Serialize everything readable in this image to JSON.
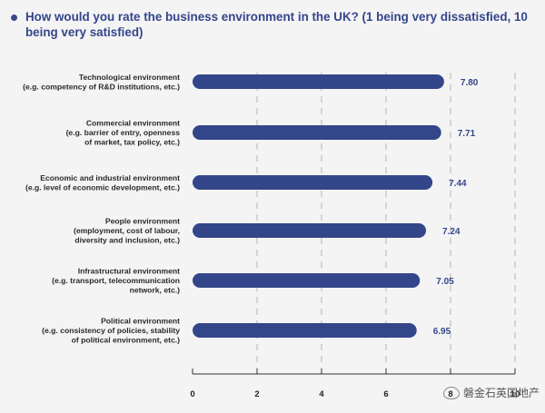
{
  "title": "How would you rate the business environment in the UK? (1 being very dissatisfied, 10 being very satisfied)",
  "colors": {
    "bar": "#34468a",
    "accent": "#34468a",
    "gridline": "#b5b5b5",
    "axis": "#333333"
  },
  "watermark": {
    "icon": "wechat-icon",
    "text": "磐金石英国地产"
  },
  "chart_data": {
    "type": "bar",
    "orientation": "horizontal",
    "categories": [
      [
        "Technological environment",
        "(e.g. competency of R&D institutions, etc.)"
      ],
      [
        "Commercial environment",
        "(e.g. barrier of entry, openness",
        "of market, tax policy, etc.)"
      ],
      [
        "Economic and industrial environment",
        "(e.g. level of economic development, etc.)"
      ],
      [
        "People environment",
        "(employment, cost of labour,",
        "diversity and inclusion, etc.)"
      ],
      [
        "Infrastructural environment",
        "(e.g. transport, telecommunication",
        "network, etc.)"
      ],
      [
        "Political environment",
        "(e.g. consistency of policies, stability",
        "of political environment, etc.)"
      ]
    ],
    "values": [
      7.8,
      7.71,
      7.44,
      7.24,
      7.05,
      6.95
    ],
    "value_labels": [
      "7.80",
      "7.71",
      "7.44",
      "7.24",
      "7.05",
      "6.95"
    ],
    "xlim": [
      0,
      10
    ],
    "xticks": [
      0,
      2,
      4,
      6,
      8,
      10
    ],
    "xtick_labels": [
      "0",
      "2",
      "4",
      "6",
      "8",
      "10"
    ],
    "grid": "dashed vertical",
    "legend": "none",
    "xlabel": "",
    "ylabel": ""
  }
}
